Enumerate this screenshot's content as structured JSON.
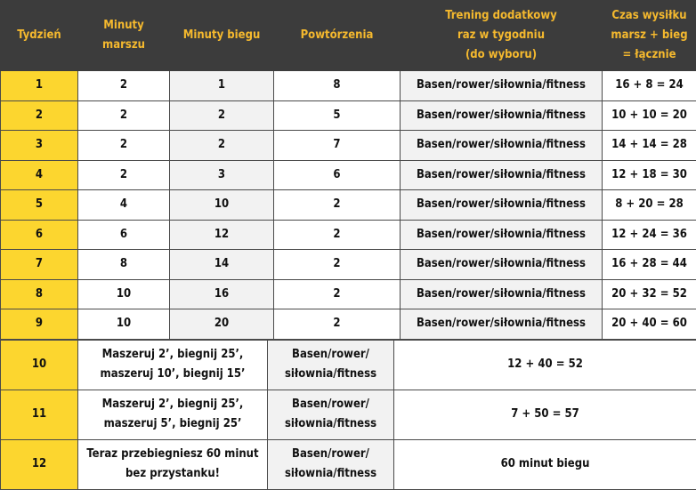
{
  "headers": [
    "Tydzień",
    "Minuty marszu",
    "Minuty biegu",
    "Powtórzenia",
    "Trening dodatkowy raz w tygodniu (do wyboru)",
    "Czas wysiłku marsz + bieg = łącznie"
  ],
  "header_lines": [
    [
      "Tydzień"
    ],
    [
      "Minuty",
      "marszu"
    ],
    [
      "Minuty biegu"
    ],
    [
      "Powtórzenia"
    ],
    [
      "Trening dodatkowy",
      "raz w tygodniu",
      "(do wyboru)"
    ],
    [
      "Czas wysiłku",
      "marsz + bieg",
      "= łącznie"
    ]
  ],
  "rows": [
    [
      "1",
      "2",
      "1",
      "8",
      "Basen/rower/siłownia/fitness",
      "16 + 8 = 24"
    ],
    [
      "2",
      "2",
      "2",
      "5",
      "Basen/rower/siłownia/fitness",
      "10 + 10 = 20"
    ],
    [
      "3",
      "2",
      "2",
      "7",
      "Basen/rower/siłownia/fitness",
      "14 + 14 = 28"
    ],
    [
      "4",
      "2",
      "3",
      "6",
      "Basen/rower/siłownia/fitness",
      "12 + 18 = 30"
    ],
    [
      "5",
      "4",
      "10",
      "2",
      "Basen/rower/siłownia/fitness",
      "8 + 20 = 28"
    ],
    [
      "6",
      "6",
      "12",
      "2",
      "Basen/rower/siłownia/fitness",
      "12 + 24 = 36"
    ],
    [
      "7",
      "8",
      "14",
      "2",
      "Basen/rower/siłownia/fitness",
      "16 + 28 = 44"
    ],
    [
      "8",
      "10",
      "16",
      "2",
      "Basen/rower/siłownia/fitness",
      "20 + 32 = 52"
    ],
    [
      "9",
      "10",
      "20",
      "2",
      "Basen/rower/siłownia/fitness",
      "20 + 40 = 60"
    ]
  ],
  "special_rows": [
    {
      "week": "10",
      "plan": [
        "Maszeruj 2’, biegnij 25’,",
        "maszeruj 10’, biegnij 15’"
      ],
      "extra": [
        "Basen/rower/",
        "siłownia/fitness"
      ],
      "total": "12 + 40 = 52"
    },
    {
      "week": "11",
      "plan": [
        "Maszeruj 2’, biegnij 25’,",
        "maszeruj 5’, biegnij 25’"
      ],
      "extra": [
        "Basen/rower/",
        "siłownia/fitness"
      ],
      "total": "7 + 50 = 57"
    },
    {
      "week": "12",
      "plan": [
        "Teraz przebiegniesz 60 minut",
        "bez przystanku!"
      ],
      "extra": [
        "Basen/rower/",
        "siłownia/fitness"
      ],
      "total": "60 minut biegu"
    }
  ],
  "colors": {
    "header_bg": "#3c3c3c",
    "header_text": "#f5b92e",
    "week_bg": "#fcd62f",
    "alt_col_bg": "#f2f2f2"
  }
}
